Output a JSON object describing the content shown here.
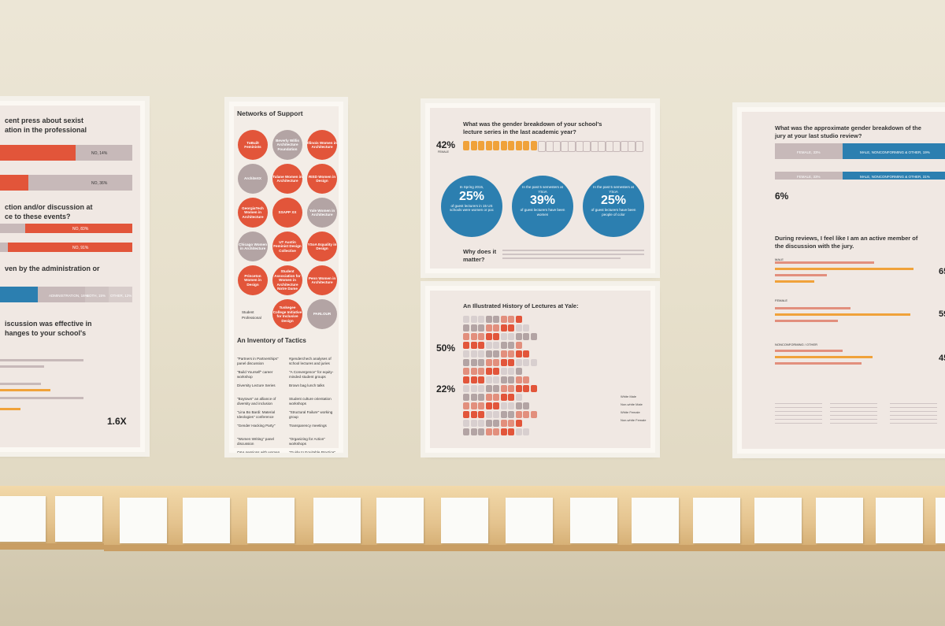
{
  "poster1": {
    "title_line1": "cent press about sexist",
    "title_line2": "ation in the professional",
    "q2_line1": "ction and/or discussion at",
    "q2_line2": "ce to these events?",
    "q3": "ven by the administration or",
    "q4_line1": "iscussion was effective in",
    "q4_line2": "hanges to your school's",
    "bar_label_1": "NO, 14%",
    "bar_label_2": "NO, 36%",
    "bar_label_3": "NO, 83%",
    "bar_label_4": "NO, 91%",
    "bar_label_5": "ADMINISTRATION, 16%",
    "bar_label_6": "BOTH, 15%",
    "bar_label_7": "OTHER, 12%",
    "stat": "1.6X"
  },
  "poster2": {
    "title": "Networks of Support",
    "circles": [
      "ToBuilt Feminists",
      "Beverly Willis Architecture Foundation",
      "Illinois Women in Architecture",
      "ArchiteXX",
      "Tulane Women in Architecture",
      "RISD Women in Design",
      "GeorgiaTech Women in Architecture",
      "SSAPP XX",
      "Yale Women in Architecture",
      "Chicago Women in Architecture",
      "UT Austin Feminist Design Collective",
      "YSoA Equality in Design",
      "Princeton Women in Design",
      "Student Association for Women in Architecture Notre Dame",
      "Penn Women in Architecture",
      "",
      "Tuskegee College Initiative for Inclusive Design",
      "PARLOUR"
    ],
    "legend_student": "Student",
    "legend_professional": "Professional",
    "tactics_title": "An Inventory of Tactics",
    "tactics_left": [
      "\"Partners in Partnerships\" panel discussion",
      "\"Build Yourself\" career workshop",
      "Diversity Lecture Series",
      "\"Boytown\" an alliance of diversity and inclusion",
      "\"Lina Bo Bardi: Material Ideologies\" conference",
      "\"Gender Hacking Party\"",
      "\"Women Writing\" panel discussion",
      "Q&A sessions with women architects",
      "School-wide surveys"
    ],
    "tactics_right": [
      "#genderchech analyses of school lectures and juries",
      "\"A Convergence\" for equity-minded student groups",
      "Brown bag lunch talks",
      "Student culture orientation workshops",
      "\"Structural Failure\" working group",
      "Transparency meetings",
      "\"Organizing for Action\" workshops",
      "\"Guide to Equitable Practice\"",
      "Wikipedia marathons"
    ]
  },
  "poster3": {
    "title_line1": "What was the gender breakdown of your school's",
    "title_line2": "lecture series in the last academic year?",
    "stat": "42%",
    "stat_label": "FEMALE",
    "c1_pct": "25%",
    "c1_top": "In Spring 2015,",
    "c1_bottom": "of guest lecturers in 15 US schools were women or poc",
    "c2_pct": "39%",
    "c2_top": "In the past 5 semesters at YSoA",
    "c2_bottom": "of guest lecturers have been women",
    "c3_pct": "25%",
    "c3_top": "In the past 5 semesters at YSoA",
    "c3_bottom": "of guest lecturers have been people of color",
    "why_line1": "Why does it",
    "why_line2": "matter?"
  },
  "poster4": {
    "title": "An Illustrated History of Lectures at Yale:",
    "stat1": "50%",
    "stat2": "22%",
    "legend": [
      "White Male",
      "Non-white Male",
      "White Female",
      "Non-white Female"
    ]
  },
  "poster5": {
    "title_line1": "What was the approximate gender breakdown of the",
    "title_line2": "jury at your last studio review?",
    "bar1_grey": "FEMALE, 33%",
    "bar1_blue": "MALE, NONCONFORMING & OTHER, 19%",
    "bar2_grey": "FEMALE, 33%",
    "bar2_blue": "MALE, NONCONFORMING & OTHER, 31%",
    "stat": "6%",
    "q_line1": "During reviews, I feel like I am an active member of",
    "q_line2": "the discussion with the jury.",
    "group1": "MALE",
    "group2": "FEMALE",
    "group3": "NONCONFORMING / OTHER",
    "pct1": "65",
    "pct2": "59",
    "pct3": "45"
  },
  "colors": {
    "red": "#e2553a",
    "blue": "#2c7fb0",
    "orange": "#f0a23a",
    "grey": "#c7b9b9"
  }
}
